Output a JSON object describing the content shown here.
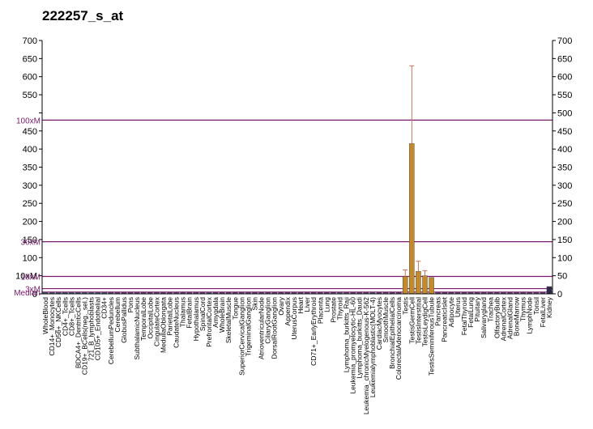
{
  "chart_data": {
    "type": "bar",
    "title": "222257_s_at",
    "xlabel": "",
    "ylabel": "",
    "ylim": [
      0,
      700
    ],
    "yticks_left": [
      {
        "v": 0,
        "t": "0"
      },
      {
        "v": 50,
        "t": "10xM"
      },
      {
        "v": 100,
        "t": "100"
      },
      {
        "v": 150,
        "t": "150"
      },
      {
        "v": 200,
        "t": "200"
      },
      {
        "v": 250,
        "t": "250"
      },
      {
        "v": 300,
        "t": "300"
      },
      {
        "v": 350,
        "t": "350"
      },
      {
        "v": 400,
        "t": "400"
      },
      {
        "v": 450,
        "t": "450"
      },
      {
        "v": 500,
        "t": ""
      },
      {
        "v": 550,
        "t": "550"
      },
      {
        "v": 600,
        "t": "600"
      },
      {
        "v": 650,
        "t": "650"
      },
      {
        "v": 700,
        "t": "700"
      }
    ],
    "yticks_right": [
      "0",
      "50",
      "100",
      "150",
      "200",
      "250",
      "300",
      "350",
      "400",
      "450",
      "500",
      "550",
      "600",
      "650",
      "700"
    ],
    "reference_lines": [
      {
        "label": "Median",
        "value": 4.8
      },
      {
        "label": "3xM",
        "value": 14.4
      },
      {
        "label": "10xM",
        "value": 48
      },
      {
        "label": "30xM",
        "value": 144
      },
      {
        "label": "100xM",
        "value": 480
      }
    ],
    "categories": [
      "WholeBlood",
      "CD14+_Monocytes",
      "CD56+_NKCells",
      "CD4+_Tcells",
      "CD8+_Tcells",
      "BDCA4+_DentriticCells",
      "CD19+_BCells(neg._sel.)",
      "721_B_lymphoblasts",
      "CD105+_Endothelial",
      "CD34+",
      "CerebellumPeduncles",
      "Cerebellum",
      "GlobusPallidus",
      "Pons",
      "SubthalamicNucleus",
      "TemporalLobe",
      "OccipitalLobe",
      "CingulateCortex",
      "MedullaOblongata",
      "ParietalLobe",
      "CaudateNucleus",
      "Thalamus",
      "FetalBrain",
      "Hypothalamus",
      "SpinalCord",
      "PrefrontalCortex",
      "Amygdala",
      "WholeBrain",
      "SkeletalMuscle",
      "Tongue",
      "SuperiorCervicalGanglion",
      "TrigeminalGanglion",
      "Skin",
      "AtrioventricularNode",
      "CiliaryGanglion",
      "DorsalRootGanglion",
      "Ovary",
      "Appendix",
      "UterusCorpus",
      "Heart",
      "Liver",
      "CD71+_EarlyErythroid",
      "Placenta",
      "Lung",
      "Prostate",
      "Thyroid",
      "Lymphoma_burkitts_Raji",
      "Leukemia_promyelocytic-HL-60",
      "Lymphoma_burkitts_Daudi",
      "Leukemia_chronicMyelogenous-K-562",
      "Leukemialymphoblastic(MOLT-4)",
      "CardiacMyocytes",
      "SmoothMuscle",
      "BronchialEpithelialCells",
      "ColorectalAdenocarcinoma",
      "Testis",
      "TestisGermCell",
      "TestisInterstitial",
      "TestisLeydigCell",
      "TestisSeminiferousTubule",
      "Pancreas",
      "PancreaticIslet",
      "Adipocyte",
      "Uterus",
      "FetalThyroid",
      "FetalLung",
      "Pituitary",
      "Salivarygland",
      "Trachea",
      "OlfactoryBulb",
      "AdrenalCortex",
      "AdrenalGland",
      "BoneMarrow",
      "Thymus",
      "LymphNode",
      "Tonsil",
      "FetalLiver",
      "Kidney"
    ],
    "labels_shown": [
      "WholeBlood",
      "CD14+_Monocytes",
      "CD56+_NKCells",
      "CD4+_Tcells",
      "CD8+_Tcells",
      "BDCA4+_DentriticCells",
      "CD19+_BCells(neg._sel.)",
      "721_B_lymphoblasts",
      "CD105+_Endothelial",
      "CD34+",
      "CerebellumPeduncles",
      "Cerebellum",
      "GlobusPallidus",
      "Pons",
      "SubthalamicNucleus",
      "TemporalLobe",
      "OccipitalLobe",
      "CingulateCortex",
      "MedullaOblongata",
      "ParietalLobe",
      "CaudateNucleus",
      "Thalamus",
      "FetalBrain",
      "Hypothalamus",
      "SpinalCord",
      "PrefrontalCortex",
      "Amygdala",
      "WholeBrain",
      "SkeletalMuscle",
      "Tongue",
      "SuperiorCervicalGanglion",
      "TrigeminalGanglion",
      "Skin",
      "AtrioventricularNode",
      "CiliaryGanglion",
      "DorsalRootGanglion",
      "Ovary",
      "Appendix",
      "UterusCorpus",
      "Heart",
      "Liver",
      "CD71+_EarlyErythroid",
      "Placenta",
      "Lung",
      "Prostate",
      "Thyroid",
      "Lymphoma_burkitts_Raji",
      "Leukemia_promyelocytic-HL-60",
      "Lymphoma_burkitts_Daudi",
      "Leukemia_chronicMyelogenous-K-562",
      "Leukemialymphoblastic(MOLT-4)",
      "CardiacMyocytes",
      "SmoothMuscle",
      "BronchialEpithelialCells",
      "ColorectalAdenocarcinoma",
      "Testis",
      "TestisGermCell",
      "TestisInterstitial",
      "TestisLeydigCell",
      "TestisSeminiferousTubule",
      "Pancreas",
      "PancreaticIslet",
      "Adipocyte",
      "Uterus",
      "FetalThyroid",
      "FetalLung",
      "Pituitary",
      "Salivarygland",
      "Trachea",
      "OlfactoryBulb",
      "AdrenalCortex",
      "AdrenalGland",
      "BoneMarrow",
      "Thymus",
      "LymphNode",
      "Tonsil",
      "FetalLiver",
      "Kidney"
    ],
    "values": [
      4,
      4,
      4,
      4,
      4,
      4,
      4,
      4,
      4,
      4,
      3,
      3,
      3,
      3,
      3,
      3,
      3,
      3,
      3,
      3,
      3,
      3,
      3,
      3,
      3,
      4,
      3,
      3,
      3,
      3,
      3,
      3,
      3,
      3,
      3,
      3,
      3,
      3,
      3,
      3,
      3,
      3,
      3,
      3,
      3,
      4,
      3,
      3,
      3,
      3,
      4,
      3,
      3,
      3,
      3,
      48,
      415,
      62,
      50,
      45,
      3,
      3,
      3,
      3,
      3,
      3,
      3,
      3,
      3,
      3,
      3,
      3,
      3,
      3,
      3,
      3,
      3,
      20
    ],
    "errors": [
      0,
      0,
      0,
      0,
      0,
      0,
      0,
      0,
      0,
      0,
      0,
      0,
      0,
      0,
      0,
      0,
      0,
      0,
      0,
      0,
      0,
      0,
      0,
      0,
      0,
      0,
      0,
      0,
      0,
      0,
      0,
      0,
      0,
      0,
      0,
      0,
      0,
      0,
      0,
      0,
      0,
      0,
      0,
      0,
      0,
      0,
      0,
      0,
      0,
      0,
      0,
      0,
      0,
      0,
      0,
      18,
      215,
      28,
      14,
      0,
      0,
      0,
      0,
      0,
      0,
      0,
      0,
      0,
      0,
      0,
      0,
      0,
      0,
      0,
      0,
      0,
      0,
      0
    ],
    "colors": {
      "bar_blue": "#5b5f8c",
      "bar_gold": "#c48a2a",
      "bar_dark": "#2e2a4a",
      "reference_line": "#7a1a6e",
      "error_bar": "#d0735a"
    },
    "grid": false
  }
}
